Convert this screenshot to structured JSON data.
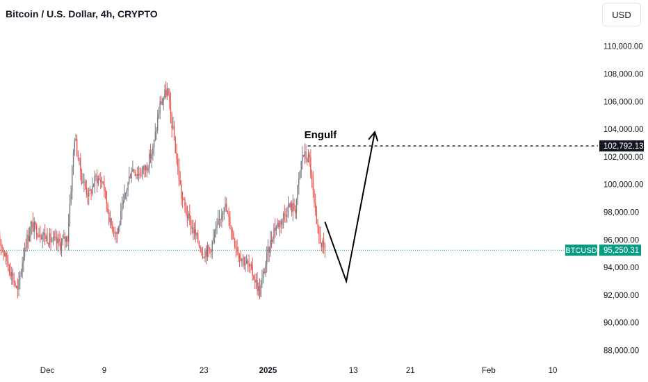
{
  "header": {
    "title": "Bitcoin / U.S. Dollar, 4h, CRYPTO",
    "currency": "USD"
  },
  "colors": {
    "up": "#26a69a",
    "down": "#ef5350",
    "candle_body_up": "#787b86",
    "candle_body_down": "#ef5350",
    "price_line": "#089981",
    "level_label_bg": "#131722",
    "annotation": "#000000"
  },
  "chart_data": {
    "type": "candlestick",
    "symbol": "BTCUSD",
    "y_range": [
      87000,
      111500
    ],
    "y_ticks": [
      {
        "value": 110000,
        "label": "110,000.00"
      },
      {
        "value": 108000,
        "label": "108,000.00"
      },
      {
        "value": 106000,
        "label": "106,000.00"
      },
      {
        "value": 104000,
        "label": "104,000.00"
      },
      {
        "value": 102000,
        "label": "102,000.00"
      },
      {
        "value": 100000,
        "label": "100,000.00"
      },
      {
        "value": 98000,
        "label": "98,000.00"
      },
      {
        "value": 96000,
        "label": "96,000.00"
      },
      {
        "value": 94000,
        "label": "94,000.00"
      },
      {
        "value": 92000,
        "label": "92,000.00"
      },
      {
        "value": 90000,
        "label": "90,000.00"
      },
      {
        "value": 88000,
        "label": "88,000.00"
      }
    ],
    "x_range": [
      "2024-11-24",
      "2025-02-13"
    ],
    "x_ticks": [
      {
        "date": "2024-12-01",
        "label": "Dec",
        "bold": false
      },
      {
        "date": "2024-12-09",
        "label": "9",
        "bold": false
      },
      {
        "date": "2024-12-23",
        "label": "23",
        "bold": false
      },
      {
        "date": "2025-01-01",
        "label": "2025",
        "bold": true
      },
      {
        "date": "2025-01-13",
        "label": "13",
        "bold": false
      },
      {
        "date": "2025-01-21",
        "label": "21",
        "bold": false
      },
      {
        "date": "2025-02-01",
        "label": "Feb",
        "bold": false
      },
      {
        "date": "2025-02-10",
        "label": "10",
        "bold": false
      }
    ],
    "price_path": [
      [
        "2024-11-24",
        97000
      ],
      [
        "2024-11-25",
        95200
      ],
      [
        "2024-11-26",
        93800
      ],
      [
        "2024-11-27",
        92200
      ],
      [
        "2024-11-28",
        95600
      ],
      [
        "2024-11-29",
        97000
      ],
      [
        "2024-11-30",
        96600
      ],
      [
        "2024-12-01",
        96200
      ],
      [
        "2024-12-02",
        95900
      ],
      [
        "2024-12-03",
        95700
      ],
      [
        "2024-12-04",
        96200
      ],
      [
        "2024-12-05",
        103500
      ],
      [
        "2024-12-06",
        100500
      ],
      [
        "2024-12-07",
        99200
      ],
      [
        "2024-12-08",
        100500
      ],
      [
        "2024-12-09",
        100200
      ],
      [
        "2024-12-10",
        97200
      ],
      [
        "2024-12-11",
        96500
      ],
      [
        "2024-12-12",
        99000
      ],
      [
        "2024-12-13",
        101200
      ],
      [
        "2024-12-14",
        100800
      ],
      [
        "2024-12-15",
        101200
      ],
      [
        "2024-12-16",
        102500
      ],
      [
        "2024-12-17",
        105800
      ],
      [
        "2024-12-18",
        106800
      ],
      [
        "2024-12-19",
        103200
      ],
      [
        "2024-12-20",
        99200
      ],
      [
        "2024-12-21",
        97500
      ],
      [
        "2024-12-22",
        96300
      ],
      [
        "2024-12-23",
        95100
      ],
      [
        "2024-12-24",
        95300
      ],
      [
        "2024-12-25",
        96800
      ],
      [
        "2024-12-26",
        98700
      ],
      [
        "2024-12-27",
        96800
      ],
      [
        "2024-12-28",
        95100
      ],
      [
        "2024-12-29",
        94400
      ],
      [
        "2024-12-30",
        93600
      ],
      [
        "2024-12-31",
        92200
      ],
      [
        "2025-01-01",
        94700
      ],
      [
        "2025-01-02",
        96800
      ],
      [
        "2025-01-03",
        97400
      ],
      [
        "2025-01-04",
        98400
      ],
      [
        "2025-01-05",
        98300
      ],
      [
        "2025-01-06",
        102200
      ],
      [
        "2025-01-07",
        101800
      ],
      [
        "2025-01-08",
        96800
      ],
      [
        "2025-01-09",
        95250
      ]
    ],
    "level": {
      "value": 102792.13,
      "label": "102,792.13",
      "from_date": "2025-01-06"
    },
    "last_price": {
      "value": 95250.31,
      "label": "95,250.31",
      "symbol_label": "BTCUSD"
    },
    "annotation": {
      "text": "Engulf",
      "arrow_path": [
        [
          "2025-01-09",
          97300
        ],
        [
          "2025-01-12",
          93000
        ],
        [
          "2025-01-16",
          103800
        ]
      ]
    }
  }
}
